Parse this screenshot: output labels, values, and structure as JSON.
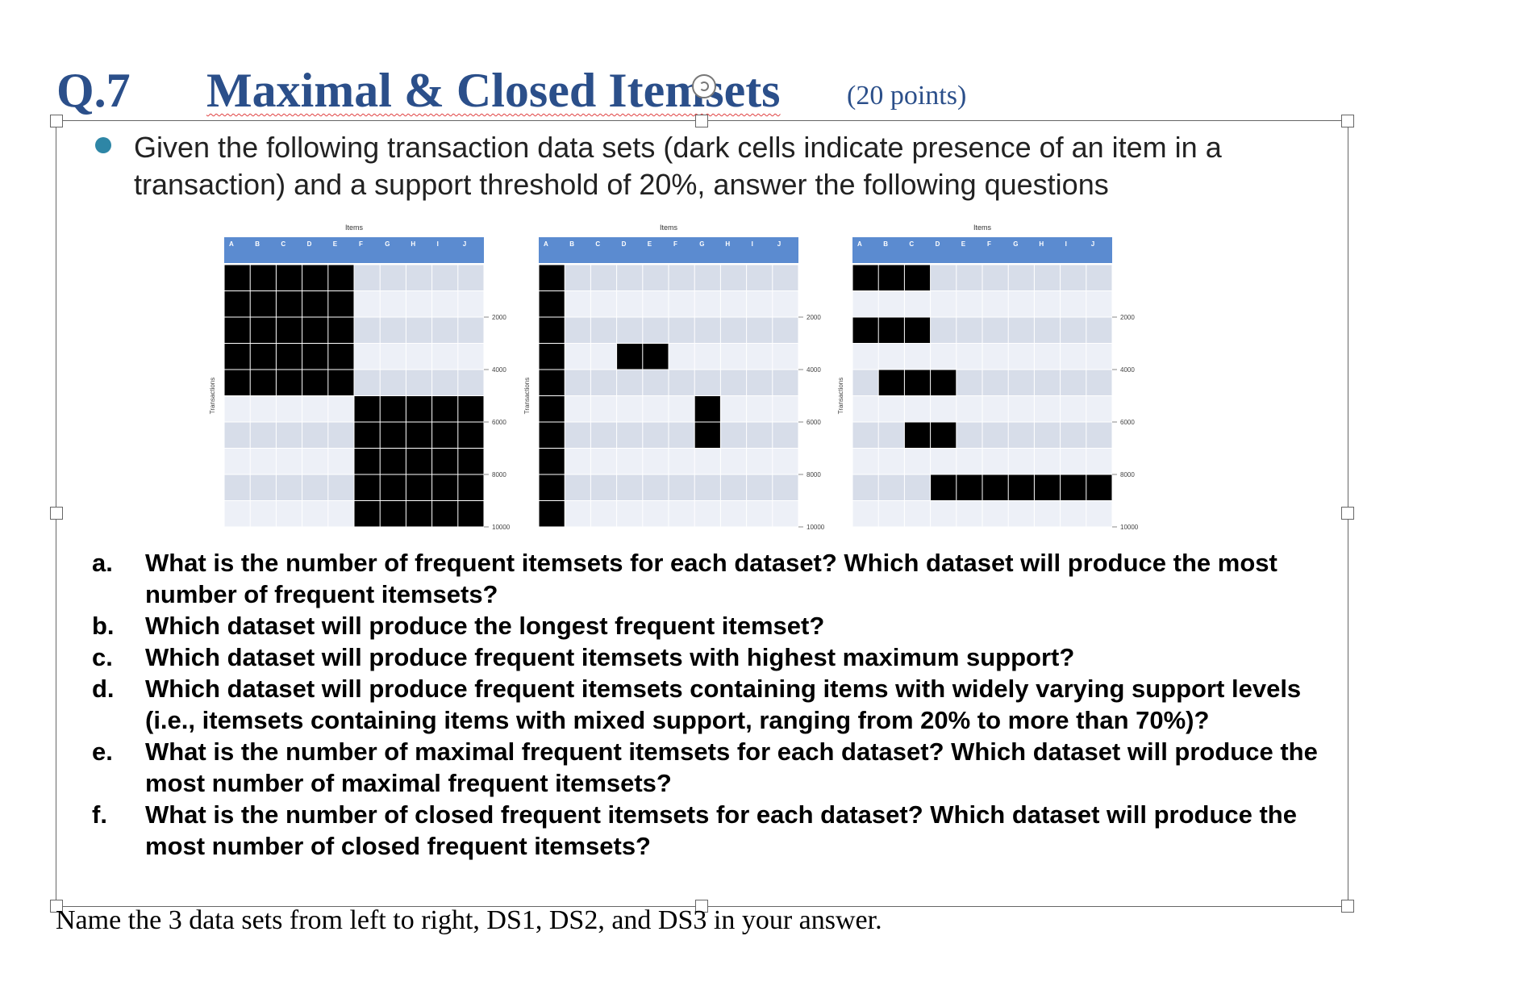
{
  "heading": {
    "number": "Q.7",
    "title": "Maximal & Closed Itemsets",
    "points": "(20 points)"
  },
  "intro": "Given the following transaction data sets (dark cells indicate presence of an item in a transaction) and a support threshold of 20%, answer the following questions",
  "figures": {
    "items_label": "Items",
    "transactions_label": "Transactions",
    "columns": [
      "A",
      "B",
      "C",
      "D",
      "E",
      "F",
      "G",
      "H",
      "I",
      "J"
    ],
    "y_ticks": [
      "2000",
      "4000",
      "6000",
      "8000",
      "10000"
    ],
    "datasets": [
      {
        "blocks": [
          {
            "items": [
              0,
              1,
              2,
              3,
              4
            ],
            "rows": [
              0,
              1,
              2,
              3,
              4
            ]
          },
          {
            "items": [
              5,
              6,
              7,
              8,
              9
            ],
            "rows": [
              5,
              6,
              7,
              8,
              9
            ]
          }
        ]
      },
      {
        "blocks": [
          {
            "items": [
              0
            ],
            "rows": [
              0,
              1,
              2,
              3,
              4,
              5,
              6,
              7,
              8,
              9
            ]
          },
          {
            "items": [
              3,
              4
            ],
            "rows": [
              3
            ]
          },
          {
            "items": [
              6
            ],
            "rows": [
              5,
              6
            ]
          }
        ]
      },
      {
        "blocks": [
          {
            "items": [
              0,
              1,
              2
            ],
            "rows": [
              0
            ]
          },
          {
            "items": [
              0,
              1,
              2
            ],
            "rows": [
              2
            ]
          },
          {
            "items": [
              1,
              2,
              3
            ],
            "rows": [
              4
            ]
          },
          {
            "items": [
              2,
              3
            ],
            "rows": [
              6
            ]
          },
          {
            "items": [
              3,
              4,
              5,
              6,
              7,
              8,
              9
            ],
            "rows": [
              8
            ]
          }
        ]
      }
    ]
  },
  "questions": [
    {
      "letter": "a.",
      "text": "What is the number of frequent itemsets for each dataset? Which dataset will produce the most number of frequent itemsets?"
    },
    {
      "letter": "b.",
      "text": "Which dataset will produce the longest frequent itemset?"
    },
    {
      "letter": "c.",
      "text": "Which dataset will produce frequent itemsets with highest maximum support?"
    },
    {
      "letter": "d.",
      "text": "Which dataset will produce frequent itemsets containing items with widely varying support levels (i.e., itemsets containing items with mixed support, ranging from 20% to more than 70%)?"
    },
    {
      "letter": "e.",
      "text": "What is the number of maximal frequent itemsets for each dataset? Which dataset will produce the most number of maximal frequent itemsets?"
    },
    {
      "letter": "f.",
      "text": "What is the number of closed frequent itemsets for each dataset? Which dataset will produce the most number of closed frequent itemsets?"
    }
  ],
  "footer": "Name the 3 data sets from left to right, DS1, DS2, and DS3 in your answer.",
  "colors": {
    "heading": "#2b4f8a",
    "header_bar": "#5b8bd0",
    "row_light": "#edf0f7",
    "row_dark": "#d7dde9",
    "cell_filled": "#000000",
    "bullet": "#2e86a6"
  }
}
